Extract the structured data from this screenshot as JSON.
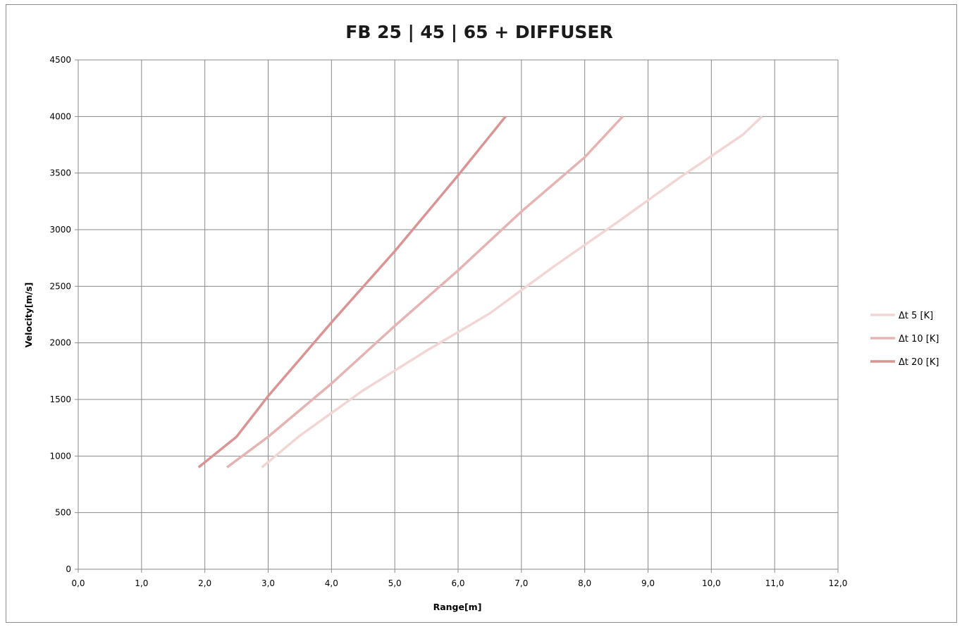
{
  "chart_data": {
    "type": "line",
    "title": "FB 25 | 45 | 65 + DIFFUSER",
    "xlabel": "Range[m]",
    "ylabel": "Velocity[m/s]",
    "xlim": [
      0,
      12
    ],
    "ylim": [
      0,
      4500
    ],
    "x_ticks": [
      "0,0",
      "1,0",
      "2,0",
      "3,0",
      "4,0",
      "5,0",
      "6,0",
      "7,0",
      "8,0",
      "9,0",
      "10,0",
      "11,0",
      "12,0"
    ],
    "y_ticks": [
      "0",
      "500",
      "1000",
      "1500",
      "2000",
      "2500",
      "3000",
      "3500",
      "4000",
      "4500"
    ],
    "grid": true,
    "legend_position": "right",
    "series": [
      {
        "name": "Δt 5 [K]",
        "color": "#f2d6d6",
        "points": [
          [
            2.9,
            900
          ],
          [
            3.5,
            1180
          ],
          [
            4.5,
            1580
          ],
          [
            5.5,
            1930
          ],
          [
            6.5,
            2260
          ],
          [
            7.5,
            2670
          ],
          [
            8.5,
            3060
          ],
          [
            9.5,
            3460
          ],
          [
            10.5,
            3840
          ],
          [
            10.8,
            4000
          ]
        ]
      },
      {
        "name": "Δt 10 [K]",
        "color": "#e6b3b3",
        "points": [
          [
            2.35,
            900
          ],
          [
            3.0,
            1170
          ],
          [
            4.0,
            1640
          ],
          [
            5.0,
            2150
          ],
          [
            6.0,
            2640
          ],
          [
            7.0,
            3160
          ],
          [
            8.0,
            3640
          ],
          [
            8.6,
            4000
          ]
        ]
      },
      {
        "name": "Δt 20 [K]",
        "color": "#d99494",
        "points": [
          [
            1.9,
            900
          ],
          [
            2.5,
            1170
          ],
          [
            3.0,
            1530
          ],
          [
            4.0,
            2180
          ],
          [
            5.0,
            2810
          ],
          [
            6.0,
            3480
          ],
          [
            6.75,
            4000
          ]
        ]
      }
    ]
  }
}
